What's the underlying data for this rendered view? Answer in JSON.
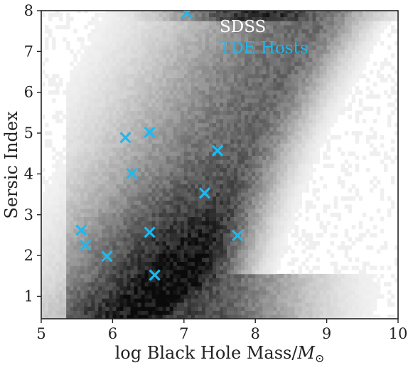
{
  "chart_data": {
    "type": "scatter",
    "xlabel": "log Black Hole Mass/",
    "xlabel_math": "M",
    "xlabel_sub": "⊙",
    "ylabel": "Sersic Index",
    "xlim": [
      5,
      10
    ],
    "ylim": [
      0.45,
      8
    ],
    "xticks": [
      "5",
      "6",
      "7",
      "8",
      "9",
      "10"
    ],
    "yticks": [
      "1",
      "2",
      "3",
      "4",
      "5",
      "6",
      "7",
      "8"
    ],
    "legend": {
      "placement": "top-right",
      "entries": [
        {
          "label": "SDSS",
          "color": "#ffffff"
        },
        {
          "label": "TDE Hosts",
          "color": "#1eb9f0"
        }
      ]
    },
    "background": {
      "type": "heatmap",
      "label": "SDSS",
      "colormap": "greys",
      "ridge": "density concentrated along curve from low mass / low Sersic index to high mass / high Sersic index"
    },
    "series": [
      {
        "name": "TDE Hosts",
        "marker": "x",
        "color": "#1eb9f0",
        "points": [
          {
            "x": 7.04,
            "y": 7.95
          },
          {
            "x": 6.52,
            "y": 5.02
          },
          {
            "x": 6.18,
            "y": 4.89
          },
          {
            "x": 7.47,
            "y": 4.57
          },
          {
            "x": 6.27,
            "y": 4.01
          },
          {
            "x": 7.29,
            "y": 3.53
          },
          {
            "x": 5.56,
            "y": 2.62
          },
          {
            "x": 6.52,
            "y": 2.57
          },
          {
            "x": 7.75,
            "y": 2.49
          },
          {
            "x": 5.62,
            "y": 2.25
          },
          {
            "x": 5.92,
            "y": 1.98
          },
          {
            "x": 6.59,
            "y": 1.52
          }
        ]
      }
    ]
  }
}
